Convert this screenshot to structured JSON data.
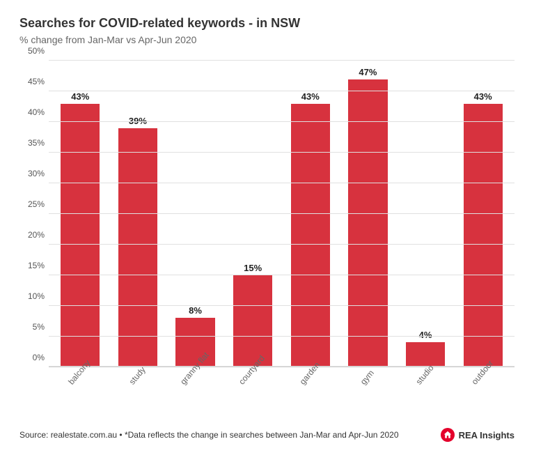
{
  "title": "Searches for COVID-related keywords - in NSW",
  "subtitle": "% change from Jan-Mar vs Apr-Jun 2020",
  "chart": {
    "type": "bar",
    "categories": [
      "balcony",
      "study",
      "granny flat",
      "courtyard",
      "garden",
      "gym",
      "studio",
      "outdoor"
    ],
    "values": [
      43,
      39,
      8,
      15,
      43,
      47,
      4,
      43
    ],
    "value_labels": [
      "43%",
      "39%",
      "8%",
      "15%",
      "43%",
      "47%",
      "4%",
      "43%"
    ],
    "bar_color": "#d7323e",
    "ylim": [
      0,
      50
    ],
    "ytick_step": 5,
    "ytick_labels": [
      "0%",
      "5%",
      "10%",
      "15%",
      "20%",
      "25%",
      "30%",
      "35%",
      "40%",
      "45%",
      "50%"
    ],
    "grid_color": "#e0e0e0",
    "axis_color": "#cccccc",
    "background_color": "#ffffff",
    "label_fontsize": 12,
    "value_label_fontsize": 13,
    "title_fontsize": 18,
    "subtitle_fontsize": 14,
    "bar_width_ratio": 0.68,
    "x_label_rotation_deg": -50
  },
  "footer": {
    "source_text": "Source: realestate.com.au • *Data reflects the change in searches between Jan-Mar and Apr-Jun 2020",
    "brand_name": "REA Insights",
    "brand_icon_color": "#e4002b"
  }
}
